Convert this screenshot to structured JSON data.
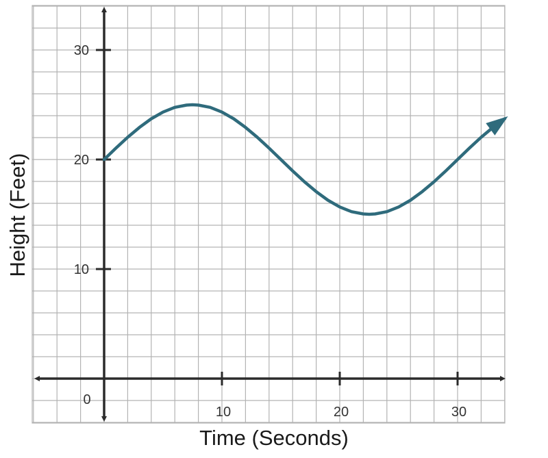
{
  "chart_data": {
    "type": "line",
    "title": "",
    "xlabel": "Time (Seconds)",
    "ylabel": "Height (Feet)",
    "xlim": [
      -6,
      34
    ],
    "ylim": [
      -4,
      34
    ],
    "x_ticks": [
      10,
      20,
      30
    ],
    "y_ticks": [
      10,
      20,
      30
    ],
    "x_tick_labels": [
      "10",
      "20",
      "30"
    ],
    "y_tick_labels": [
      "10",
      "20",
      "30"
    ],
    "origin_label": "0",
    "grid": true,
    "legend": "none",
    "series": [
      {
        "color": "#2f6b7c",
        "arrow_end": true,
        "x": [
          0,
          1,
          2,
          3,
          4,
          5,
          6,
          7,
          7.5,
          8,
          9,
          10,
          11,
          12,
          13,
          14,
          15,
          16,
          17,
          18,
          19,
          20,
          21,
          22,
          22.5,
          23,
          24,
          25,
          26,
          27,
          28,
          29,
          30,
          31,
          32,
          33,
          34
        ],
        "y": [
          20.0,
          21.04,
          22.03,
          22.93,
          23.72,
          24.33,
          24.76,
          24.97,
          25.0,
          24.97,
          24.76,
          24.33,
          23.72,
          22.93,
          22.03,
          21.04,
          20.0,
          18.96,
          17.97,
          17.07,
          16.28,
          15.67,
          15.24,
          15.03,
          15.0,
          15.03,
          15.24,
          15.67,
          16.28,
          17.07,
          17.97,
          18.96,
          20.0,
          21.04,
          22.03,
          22.93,
          23.72
        ]
      }
    ],
    "colors": {
      "grid": "#b3b3b3",
      "axis": "#2b2b2b",
      "curve": "#2f6b7c"
    }
  }
}
